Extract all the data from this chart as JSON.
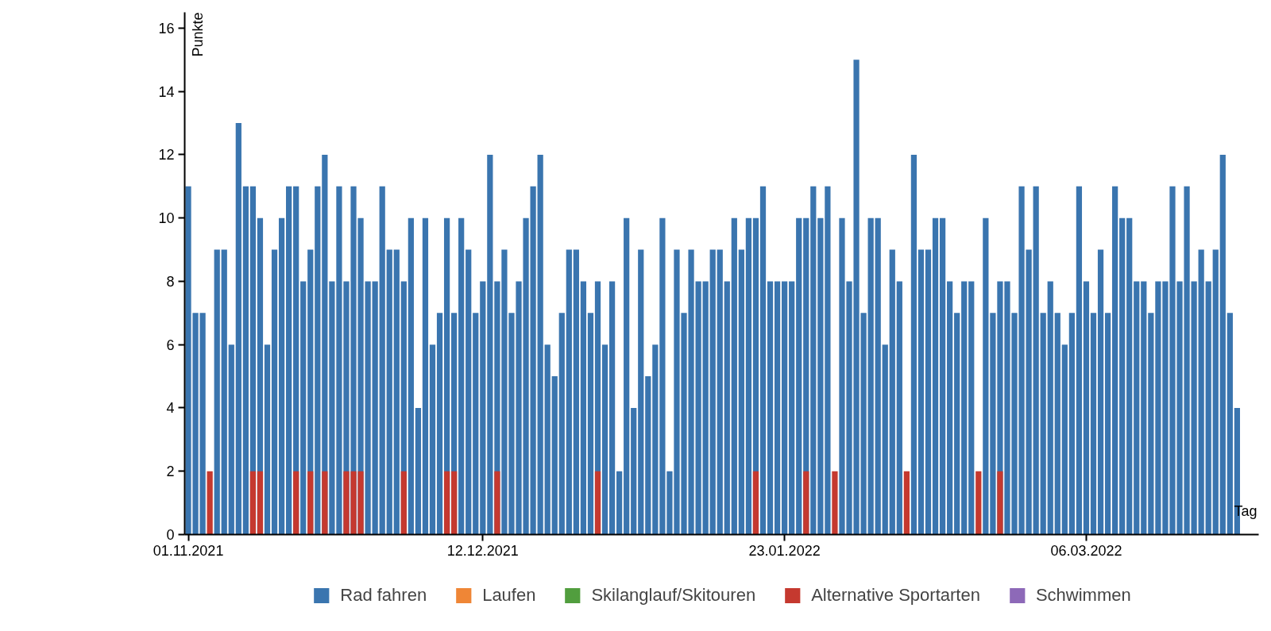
{
  "chart_data": {
    "type": "bar",
    "xlabel": "Tag",
    "ylabel": "Punkte",
    "x": [
      "2021-11-01",
      "2021-11-02",
      "2021-11-03",
      "2021-11-04",
      "2021-11-05",
      "2021-11-06",
      "2021-11-07",
      "2021-11-08",
      "2021-11-09",
      "2021-11-10",
      "2021-11-11",
      "2021-11-12",
      "2021-11-13",
      "2021-11-14",
      "2021-11-15",
      "2021-11-16",
      "2021-11-17",
      "2021-11-18",
      "2021-11-19",
      "2021-11-20",
      "2021-11-21",
      "2021-11-22",
      "2021-11-23",
      "2021-11-24",
      "2021-11-25",
      "2021-11-26",
      "2021-11-27",
      "2021-11-28",
      "2021-11-29",
      "2021-11-30",
      "2021-12-01",
      "2021-12-02",
      "2021-12-03",
      "2021-12-04",
      "2021-12-05",
      "2021-12-06",
      "2021-12-07",
      "2021-12-08",
      "2021-12-09",
      "2021-12-10",
      "2021-12-11",
      "2021-12-12",
      "2021-12-13",
      "2021-12-14",
      "2021-12-15",
      "2021-12-16",
      "2021-12-17",
      "2021-12-18",
      "2021-12-19",
      "2021-12-20",
      "2021-12-21",
      "2021-12-22",
      "2021-12-23",
      "2021-12-24",
      "2021-12-25",
      "2021-12-26",
      "2021-12-27",
      "2021-12-28",
      "2021-12-29",
      "2021-12-30",
      "2021-12-31",
      "2022-01-01",
      "2022-01-02",
      "2022-01-03",
      "2022-01-04",
      "2022-01-05",
      "2022-01-06",
      "2022-01-07",
      "2022-01-08",
      "2022-01-09",
      "2022-01-10",
      "2022-01-11",
      "2022-01-12",
      "2022-01-13",
      "2022-01-14",
      "2022-01-15",
      "2022-01-16",
      "2022-01-17",
      "2022-01-18",
      "2022-01-19",
      "2022-01-20",
      "2022-01-21",
      "2022-01-22",
      "2022-01-23",
      "2022-01-24",
      "2022-01-25",
      "2022-01-26",
      "2022-01-27",
      "2022-01-28",
      "2022-01-29",
      "2022-01-30",
      "2022-01-31",
      "2022-02-01",
      "2022-02-02",
      "2022-02-03",
      "2022-02-04",
      "2022-02-05",
      "2022-02-06",
      "2022-02-07",
      "2022-02-08",
      "2022-02-09",
      "2022-02-10",
      "2022-02-11",
      "2022-02-12",
      "2022-02-13",
      "2022-02-14",
      "2022-02-15",
      "2022-02-16",
      "2022-02-17",
      "2022-02-18",
      "2022-02-19",
      "2022-02-20",
      "2022-02-21",
      "2022-02-22",
      "2022-02-23",
      "2022-02-24",
      "2022-02-25",
      "2022-02-26",
      "2022-02-27",
      "2022-02-28",
      "2022-03-01",
      "2022-03-02",
      "2022-03-03",
      "2022-03-04",
      "2022-03-05",
      "2022-03-06",
      "2022-03-07",
      "2022-03-08",
      "2022-03-09",
      "2022-03-10",
      "2022-03-11",
      "2022-03-12",
      "2022-03-13",
      "2022-03-14",
      "2022-03-15",
      "2022-03-16",
      "2022-03-17",
      "2022-03-18",
      "2022-03-19",
      "2022-03-20",
      "2022-03-21",
      "2022-03-22",
      "2022-03-23",
      "2022-03-24",
      "2022-03-25",
      "2022-03-26",
      "2022-03-27"
    ],
    "series": [
      {
        "name": "Rad fahren",
        "color": "#3a75af",
        "values": [
          11,
          7,
          7,
          null,
          9,
          9,
          6,
          13,
          11,
          11,
          10,
          6,
          9,
          10,
          11,
          11,
          8,
          9,
          11,
          12,
          8,
          11,
          8,
          11,
          10,
          8,
          8,
          11,
          9,
          9,
          8,
          10,
          4,
          10,
          6,
          7,
          10,
          7,
          10,
          9,
          7,
          8,
          12,
          8,
          9,
          7,
          8,
          10,
          11,
          12,
          6,
          5,
          7,
          9,
          9,
          8,
          7,
          8,
          6,
          8,
          2,
          10,
          4,
          9,
          5,
          6,
          10,
          2,
          9,
          7,
          9,
          8,
          8,
          9,
          9,
          8,
          10,
          9,
          10,
          10,
          11,
          8,
          8,
          8,
          8,
          10,
          10,
          11,
          10,
          11,
          null,
          10,
          8,
          15,
          7,
          10,
          10,
          6,
          9,
          8,
          null,
          12,
          9,
          9,
          10,
          10,
          8,
          7,
          8,
          8,
          null,
          10,
          7,
          8,
          8,
          7,
          11,
          9,
          11,
          7,
          8,
          7,
          6,
          7,
          11,
          8,
          7,
          9,
          7,
          11,
          10,
          10,
          8,
          8,
          7,
          8,
          8,
          11,
          8,
          11,
          8,
          9,
          8,
          9,
          12,
          7,
          4
        ]
      },
      {
        "name": "Laufen",
        "color": "#ef8636",
        "values": [
          null,
          null,
          null,
          null,
          null,
          null,
          null,
          null,
          null,
          null,
          null,
          null,
          null,
          null,
          null,
          null,
          null,
          null,
          null,
          null,
          null,
          null,
          null,
          null,
          null,
          null,
          null,
          null,
          null,
          null,
          null,
          null,
          null,
          null,
          null,
          null,
          null,
          null,
          null,
          null,
          null,
          null,
          null,
          null,
          null,
          null,
          null,
          null,
          null,
          null,
          null,
          null,
          null,
          null,
          null,
          null,
          null,
          null,
          null,
          null,
          null,
          null,
          null,
          null,
          null,
          null,
          null,
          null,
          null,
          null,
          null,
          null,
          null,
          null,
          null,
          null,
          null,
          null,
          null,
          null,
          null,
          null,
          null,
          null,
          null,
          null,
          null,
          null,
          null,
          null,
          null,
          null,
          null,
          null,
          null,
          null,
          null,
          null,
          null,
          null,
          null,
          null,
          null,
          null,
          null,
          null,
          null,
          null,
          null,
          null,
          null,
          null,
          null,
          null,
          null,
          null,
          null,
          null,
          null,
          null,
          null,
          null,
          null,
          null,
          null,
          null,
          null,
          null,
          null,
          null,
          null,
          null,
          null,
          null,
          null,
          null,
          null,
          null,
          null,
          null,
          null,
          null,
          null,
          null,
          null,
          null,
          null
        ]
      },
      {
        "name": "Skilanglauf/Skitouren",
        "color": "#519e3e",
        "values": [
          null,
          null,
          null,
          null,
          null,
          null,
          null,
          null,
          null,
          null,
          null,
          null,
          null,
          null,
          null,
          null,
          null,
          null,
          null,
          null,
          null,
          null,
          null,
          null,
          null,
          null,
          null,
          null,
          null,
          null,
          null,
          null,
          null,
          null,
          null,
          null,
          null,
          null,
          null,
          null,
          null,
          null,
          null,
          null,
          null,
          null,
          null,
          null,
          null,
          null,
          null,
          null,
          null,
          null,
          null,
          null,
          null,
          null,
          null,
          null,
          null,
          null,
          null,
          null,
          null,
          null,
          null,
          null,
          null,
          null,
          null,
          null,
          null,
          null,
          null,
          null,
          null,
          null,
          null,
          null,
          null,
          null,
          null,
          null,
          null,
          null,
          null,
          null,
          null,
          null,
          null,
          null,
          null,
          null,
          null,
          null,
          null,
          null,
          null,
          null,
          null,
          null,
          null,
          null,
          null,
          null,
          null,
          null,
          null,
          null,
          null,
          null,
          null,
          null,
          null,
          null,
          null,
          null,
          null,
          null,
          null,
          null,
          null,
          null,
          null,
          null,
          null,
          null,
          null,
          null,
          null,
          null,
          null,
          null,
          null,
          null,
          null,
          null,
          null,
          null,
          null,
          null,
          null,
          null,
          null,
          null,
          null
        ]
      },
      {
        "name": "Alternative Sportarten",
        "color": "#c5392f",
        "x": [
          "2021-11-04",
          "2021-11-10",
          "2021-11-11",
          "2021-11-16",
          "2021-11-18",
          "2021-11-20",
          "2021-11-23",
          "2021-11-24",
          "2021-11-25",
          "2021-12-01",
          "2021-12-07",
          "2021-12-08",
          "2021-12-14",
          "2021-12-28",
          "2022-01-19",
          "2022-01-26",
          "2022-01-30",
          "2022-02-09",
          "2022-02-19",
          "2022-02-22"
        ],
        "values": [
          2,
          2,
          2,
          2,
          2,
          2,
          2,
          2,
          2,
          2,
          2,
          2,
          2,
          2,
          2,
          2,
          2,
          2,
          2,
          2
        ]
      },
      {
        "name": "Schwimmen",
        "color": "#8d69b8",
        "values": [
          null,
          null,
          null,
          null,
          null,
          null,
          null,
          null,
          null,
          null,
          null,
          null,
          null,
          null,
          null,
          null,
          null,
          null,
          null,
          null,
          null,
          null,
          null,
          null,
          null,
          null,
          null,
          null,
          null,
          null,
          null,
          null,
          null,
          null,
          null,
          null,
          null,
          null,
          null,
          null,
          null,
          null,
          null,
          null,
          null,
          null,
          null,
          null,
          null,
          null,
          null,
          null,
          null,
          null,
          null,
          null,
          null,
          null,
          null,
          null,
          null,
          null,
          null,
          null,
          null,
          null,
          null,
          null,
          null,
          null,
          null,
          null,
          null,
          null,
          null,
          null,
          null,
          null,
          null,
          null,
          null,
          null,
          null,
          null,
          null,
          null,
          null,
          null,
          null,
          null,
          null,
          null,
          null,
          null,
          null,
          null,
          null,
          null,
          null,
          null,
          null,
          null,
          null,
          null,
          null,
          null,
          null,
          null,
          null,
          null,
          null,
          null,
          null,
          null,
          null,
          null,
          null,
          null,
          null,
          null,
          null,
          null,
          null,
          null,
          null,
          null,
          null,
          null,
          null,
          null,
          null,
          null,
          null,
          null,
          null,
          null,
          null,
          null,
          null,
          null,
          null,
          null,
          null,
          null,
          null,
          null,
          null
        ]
      }
    ],
    "xlim": [
      "2021-10-31T12:00",
      "2022-03-30"
    ],
    "xticks": [
      {
        "value": "2021-11-01",
        "label": "01.11.2021"
      },
      {
        "value": "2021-12-12",
        "label": "12.12.2021"
      },
      {
        "value": "2022-01-23",
        "label": "23.01.2022"
      },
      {
        "value": "2022-03-06",
        "label": "06.03.2022"
      }
    ],
    "ylim": [
      0,
      16.5
    ],
    "yticks": [
      0,
      2,
      4,
      6,
      8,
      10,
      12,
      14,
      16
    ],
    "grid": false,
    "legend": "bottom"
  }
}
